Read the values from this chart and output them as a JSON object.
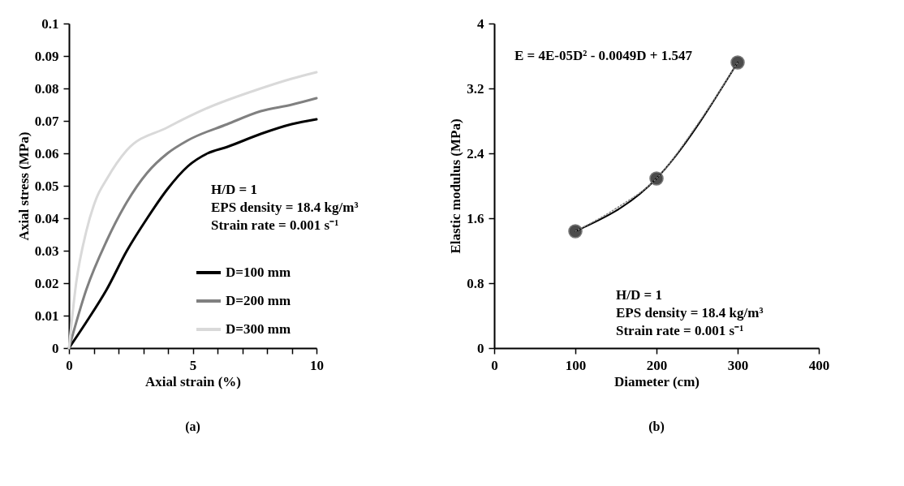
{
  "chart_data": [
    {
      "type": "line",
      "title": "(a)",
      "xlabel": "Axial strain (%)",
      "ylabel": "Axial stress (MPa)",
      "xlim": [
        0,
        10
      ],
      "ylim": [
        0,
        0.1
      ],
      "xticks": [
        0,
        {
          "value": 1,
          "label": null
        },
        {
          "value": 2,
          "label": null
        },
        {
          "value": 3,
          "label": null
        },
        {
          "value": 4,
          "label": null
        },
        5,
        {
          "value": 6,
          "label": null
        },
        {
          "value": 7,
          "label": null
        },
        {
          "value": 8,
          "label": null
        },
        {
          "value": 9,
          "label": null
        },
        10
      ],
      "yticks": [
        0,
        0.01,
        0.02,
        0.03,
        0.04,
        0.05,
        0.06,
        0.07,
        0.08,
        0.09,
        0.1
      ],
      "legend": "bottom right",
      "marker": "none",
      "line_style": "solid",
      "annotations": [
        "H/D = 1",
        "EPS density = 18.4 kg/m³",
        "Strain rate = 0.001 s⁻¹"
      ],
      "series": [
        {
          "name": "D=100 mm",
          "color": "#000000",
          "x": [
            0,
            0.7,
            1.52,
            2.34,
            3.16,
            3.98,
            4.8,
            5.6,
            6.4,
            7.75,
            9,
            10
          ],
          "values": [
            0,
            0.008,
            0.018,
            0.03,
            0.04,
            0.049,
            0.056,
            0.06,
            0.062,
            0.066,
            0.069,
            0.0705
          ]
        },
        {
          "name": "D=200 mm",
          "color": "#808080",
          "x": [
            0,
            0.7,
            1.52,
            2.34,
            3.16,
            3.98,
            4.8,
            6.4,
            7.75,
            9,
            10
          ],
          "values": [
            0,
            0.018,
            0.033,
            0.045,
            0.054,
            0.06,
            0.064,
            0.069,
            0.073,
            0.075,
            0.077
          ]
        },
        {
          "name": "D=300 mm",
          "color": "#d9d9d9",
          "x": [
            0,
            0.29,
            0.7,
            1.1,
            1.52,
            2.34,
            3.98,
            5.6,
            7.75,
            9,
            10
          ],
          "values": [
            0,
            0.02,
            0.036,
            0.046,
            0.052,
            0.061,
            0.068,
            0.074,
            0.08,
            0.083,
            0.085
          ]
        }
      ]
    },
    {
      "type": "line",
      "title": "(b)",
      "xlabel": "Diameter (cm)",
      "ylabel": "Elastic modulus  (MPa)",
      "xlim": [
        0,
        400
      ],
      "ylim": [
        0,
        4
      ],
      "xticks": [
        0,
        100,
        200,
        300,
        400
      ],
      "yticks": [
        0,
        0.8,
        1.6,
        2.4,
        3.2,
        4
      ],
      "legend": false,
      "annotations": [
        "E = 4E-05D² - 0.0049D + 1.547",
        "H/D = 1",
        "EPS density = 18.4 kg/m³",
        "Strain rate = 0.001 s⁻¹"
      ],
      "series": [
        {
          "color": "#000000",
          "marker": "circle",
          "line_style": "solid",
          "x": [
            100,
            200,
            300
          ],
          "values": [
            1.44,
            2.09,
            3.52
          ]
        },
        {
          "color": "#808080",
          "marker": "none",
          "line_style": "dotted",
          "x": [
            100,
            150,
            200,
            250,
            300
          ],
          "values": [
            1.44,
            1.72,
            2.09,
            2.75,
            3.52
          ]
        }
      ]
    }
  ]
}
